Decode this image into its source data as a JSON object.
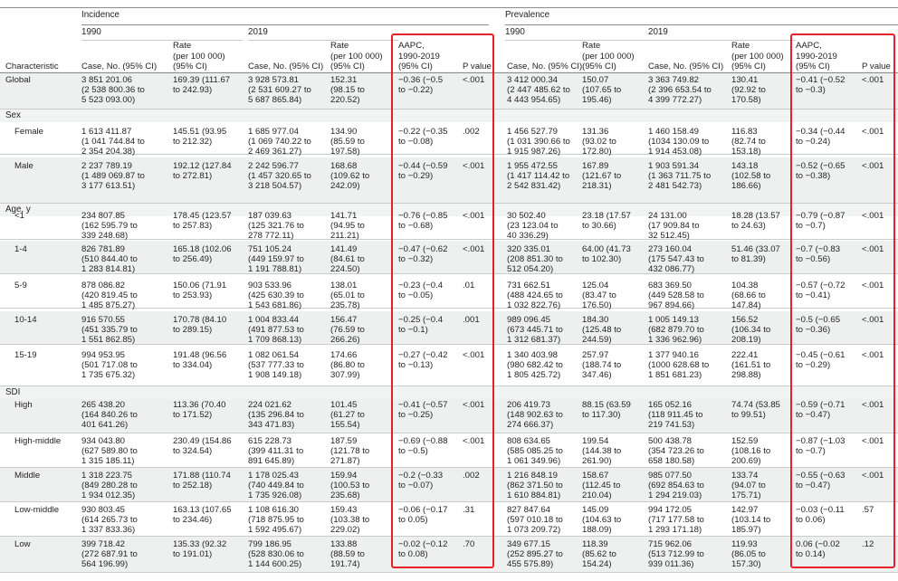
{
  "header": {
    "group_incidence": "Incidence",
    "group_prevalence": "Prevalence",
    "year_1990": "1990",
    "year_2019": "2019",
    "col_characteristic": "Characteristic",
    "col_case": "Case, No. (95% CI)",
    "col_rate": "Rate\n(per 100 000)\n(95% CI)",
    "col_aapc": "AAPC,\n1990-2019\n(95% CI)",
    "col_p": "P value"
  },
  "sections": [
    {
      "label": "Sex"
    },
    {
      "label": "Age, y"
    },
    {
      "label": "SDI"
    }
  ],
  "rows": [
    {
      "name": "Global",
      "c": [
        "3 851 201.06\n(2 538 800.36 to\n5 523 093.00)",
        "169.39 (111.67\nto 242.93)",
        "3 928 573.81\n(2 531 609.27 to\n5 687 865.84)",
        "152.31\n(98.15 to\n220.52)",
        "−0.36 (−0.5\nto −0.22)",
        "<.001",
        "3 412 000.34\n(2 447 485.62 to\n4 443 954.65)",
        "150.07\n(107.65 to\n195.46)",
        "3 363 749.82\n(2 396 653.54 to\n4 399 772.27)",
        "130.41\n(92.92 to\n170.58)",
        "−0.41 (−0.52\nto −0.3)",
        "<.001"
      ]
    },
    {
      "name": "Female",
      "c": [
        "1 613 411.87\n(1 041 744.84 to\n2 354 204.38)",
        "145.51 (93.95\nto 212.32)",
        "1 685 977.04\n(1 069 740.22 to\n2 469 361.27)",
        "134.90\n(85.59 to\n197.58)",
        "−0.22 (−0.35\nto −0.08)",
        ".002",
        "1 456 527.79\n(1 031 390.66 to\n1 915 987.26)",
        "131.36\n(93.02 to\n172.80)",
        "1 460 158.49\n(1034 130.09 to\n1 914 453.08)",
        "116.83\n(82.74 to\n153.18)",
        "−0.34 (−0.44\nto −0.24)",
        "<.001"
      ]
    },
    {
      "name": "Male",
      "c": [
        "2 237 789.19\n(1 489 069.87 to\n3 177 613.51)",
        "192.12 (127.84\nto 272.81)",
        "2 242 596.77\n(1 457 320.65 to\n3 218 504.57)",
        "168.68\n(109.62 to\n242.09)",
        "−0.44 (−0.59\nto −0.29)",
        "<.001",
        "1 955 472.55\n(1 417 114.42 to\n2 542 831.42)",
        "167.89\n(121.67 to\n218.31)",
        "1 903 591.34\n(1 363 711.75 to\n2 481 542.73)",
        "143.18\n(102.58 to\n186.66)",
        "−0.52 (−0.65\nto −0.38)",
        "<.001"
      ]
    },
    {
      "name": "<1",
      "c": [
        "234 807.85\n(162 595.79 to\n339 248.68)",
        "178.45 (123.57\nto 257.83)",
        "187 039.63\n(125 321.76 to\n278 772.11)",
        "141.71\n(94.95 to\n211.21)",
        "−0.76 (−0.85\nto −0.68)",
        "<.001",
        "30 502.40\n(23 123.04 to\n40 336.29)",
        "23.18 (17.57\nto 30.66)",
        "24 131.00\n(17 909.84 to\n32 512.45)",
        "18.28 (13.57\nto 24.63)",
        "−0.79 (−0.87\nto −0.7)",
        "<.001"
      ]
    },
    {
      "name": "1-4",
      "c": [
        "826 781.89\n(510 844.40 to\n1 283 814.81)",
        "165.18 (102.06\nto 256.49)",
        "751 105.24\n(449 159.97 to\n1 191 788.81)",
        "141.49\n(84.61 to\n224.50)",
        "−0.47 (−0.62\nto −0.32)",
        "<.001",
        "320 335.01\n(208 851.30 to\n512 054.20)",
        "64.00 (41.73\nto 102.30)",
        "273 160.04\n(175 547.43 to\n432 086.77)",
        "51.46 (33.07\nto 81.39)",
        "−0.7 (−0.83\nto −0.56)",
        "<.001"
      ]
    },
    {
      "name": "5-9",
      "c": [
        "878 086.82\n(420 819.45 to\n1 485 875.27)",
        "150.06 (71.91\nto 253.93)",
        "903 533.96\n(425 630.39 to\n1 543 681.86)",
        "138.01\n(65.01 to\n235.78)",
        "−0.23 (−0.4\nto −0.05)",
        ".01",
        "731 662.51\n(488 424.65 to\n1 032 822.76)",
        "125.04\n(83.47 to\n176.50)",
        "683 369.50\n(449 528.58 to\n967 894.66)",
        "104.38\n(68.66 to\n147.84)",
        "−0.57 (−0.72\nto −0.41)",
        "<.001"
      ]
    },
    {
      "name": "10-14",
      "c": [
        "916 570.55\n(451 335.79 to\n1 551 862.85)",
        "170.78 (84.10\nto 289.15)",
        "1 004 833.44\n(491 877.53 to\n1 709 868.13)",
        "156.47\n(76.59 to\n266.26)",
        "−0.25 (−0.4\nto −0.1)",
        ".001",
        "989 096.45\n(673 445.71 to\n1 312 681.37)",
        "184.30\n(125.48 to\n244.59)",
        "1 005 149.13\n(682 879.70 to\n1 336 962.96)",
        "156.52\n(106.34 to\n208.19)",
        "−0.5 (−0.65\nto −0.36)",
        "<.001"
      ]
    },
    {
      "name": "15-19",
      "c": [
        "994 953.95\n(501 717.08 to\n1 735 675.32)",
        "191.48 (96.56\nto 334.04)",
        "1 082 061.54\n(537 777.33 to\n1 908 149.18)",
        "174.66\n(86.80 to\n307.99)",
        "−0.27 (−0.42\nto −0.13)",
        "<.001",
        "1 340 403.98\n(980 682.42 to\n1 805 425.72)",
        "257.97\n(188.74 to\n347.46)",
        "1 377 940.16\n(1000 628.68 to\n1 851 681.23)",
        "222.41\n(161.51 to\n298.88)",
        "−0.45 (−0.61\nto −0.29)",
        "<.001"
      ]
    },
    {
      "name": "High",
      "c": [
        "265 438.20\n(164 840.26 to\n401 641.26)",
        "113.36 (70.40\nto 171.52)",
        "224 021.62\n(135 296.84 to\n343 471.83)",
        "101.45\n(61.27 to\n155.54)",
        "−0.41 (−0.57\nto −0.25)",
        "<.001",
        "206 419.73\n(148 902.63 to\n274 666.37)",
        "88.15 (63.59\nto 117.30)",
        "165 052.16\n(118 911.45 to\n219 741.53)",
        "74.74 (53.85\nto 99.51)",
        "−0.59 (−0.71\nto −0.47)",
        "<.001"
      ]
    },
    {
      "name": "High-middle",
      "c": [
        "934 043.80\n(627 589.80 to\n1 315 185.11)",
        "230.49 (154.86\nto 324.54)",
        "615 228.73\n(399 411.31 to\n891 645.89)",
        "187.59\n(121.78 to\n271.87)",
        "−0.69 (−0.88\nto −0.5)",
        "<.001",
        "808 634.65\n(585 085.25 to\n1 061 349.96)",
        "199.54\n(144.38 to\n261.90)",
        "500 438.78\n(354 723.26 to\n658 180.58)",
        "152.59\n(108.16 to\n200.69)",
        "−0.87 (−1.03\nto −0.7)",
        "<.001"
      ]
    },
    {
      "name": "Middle",
      "c": [
        "1 318 223.75\n(849 280.28 to\n1 934 012.35)",
        "171.88 (110.74\nto 252.18)",
        "1 178 025.43\n(740 449.84 to\n1 735 926.08)",
        "159.94\n(100.53 to\n235.68)",
        "−0.2 (−0.33\nto −0.07)",
        ".002",
        "1 216 848.19\n(862 371.50 to\n1 610 884.81)",
        "158.67\n(112.45 to\n210.04)",
        "985 077.50\n(692 854.63 to\n1 294 219.03)",
        "133.74\n(94.07 to\n175.71)",
        "−0.55 (−0.63\nto −0.47)",
        "<.001"
      ]
    },
    {
      "name": "Low-middle",
      "c": [
        "930 803.45\n(614 265.73 to\n1 337 833.36)",
        "163.13 (107.65\nto 234.46)",
        "1 108 616.30\n(718 875.95 to\n1 592 495.67)",
        "159.43\n(103.38 to\n229.02)",
        "−0.06 (−0.17\nto 0.05)",
        ".31",
        "827 847.64\n(597 010.18 to\n1 073 209.72)",
        "145.09\n(104.63 to\n188.09)",
        "994 172.05\n(717 177.58 to\n1 293 171.18)",
        "142.97\n(103.14 to\n185.97)",
        "−0.03 (−0.11\nto 0.06)",
        ".57"
      ]
    },
    {
      "name": "Low",
      "c": [
        "399 718.42\n(272 687.91 to\n564 196.99)",
        "135.33 (92.32\nto 191.01)",
        "799 186.95\n(528 830.06 to\n1 144 600.25)",
        "133.88\n(88.59 to\n191.74)",
        "−0.02 (−0.12\nto 0.08)",
        ".70",
        "349 677.15\n(252 895.27 to\n455 575.89)",
        "118.39\n(85.62 to\n154.24)",
        "715 962.06\n(513 712.99 to\n939 011.36)",
        "119.93\n(86.05 to\n157.30)",
        "0.06 (−0.02\nto 0.14)",
        ".12"
      ]
    }
  ]
}
